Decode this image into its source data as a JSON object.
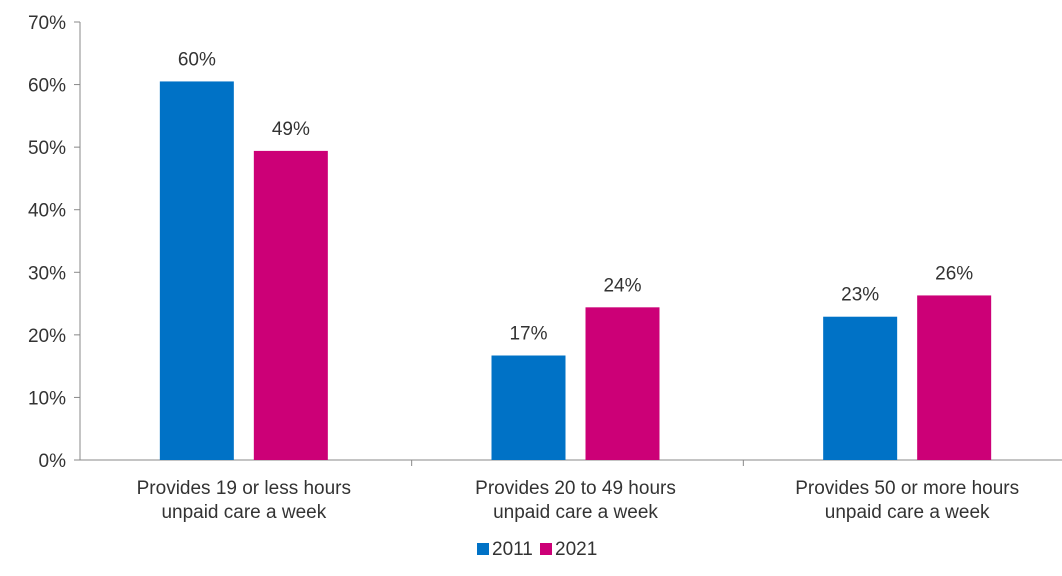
{
  "chart_data": {
    "type": "bar",
    "categories": [
      [
        "Provides 19 or less hours",
        "unpaid care a week"
      ],
      [
        "Provides 20 to 49 hours",
        "unpaid care a week"
      ],
      [
        "Provides 50 or more hours",
        "unpaid care a week"
      ]
    ],
    "series": [
      {
        "name": "2011",
        "color": "#0072c6",
        "values": [
          60.5,
          16.7,
          22.9
        ],
        "labels": [
          "60%",
          "17%",
          "23%"
        ]
      },
      {
        "name": "2021",
        "color": "#cc0077",
        "values": [
          49.4,
          24.4,
          26.3
        ],
        "labels": [
          "49%",
          "24%",
          "26%"
        ]
      }
    ],
    "ylim": [
      0,
      70
    ],
    "yticks": [
      "0%",
      "10%",
      "20%",
      "30%",
      "40%",
      "50%",
      "60%",
      "70%"
    ],
    "ytick_values": [
      0,
      10,
      20,
      30,
      40,
      50,
      60,
      70
    ],
    "legend_position": "bottom",
    "grid": false
  }
}
